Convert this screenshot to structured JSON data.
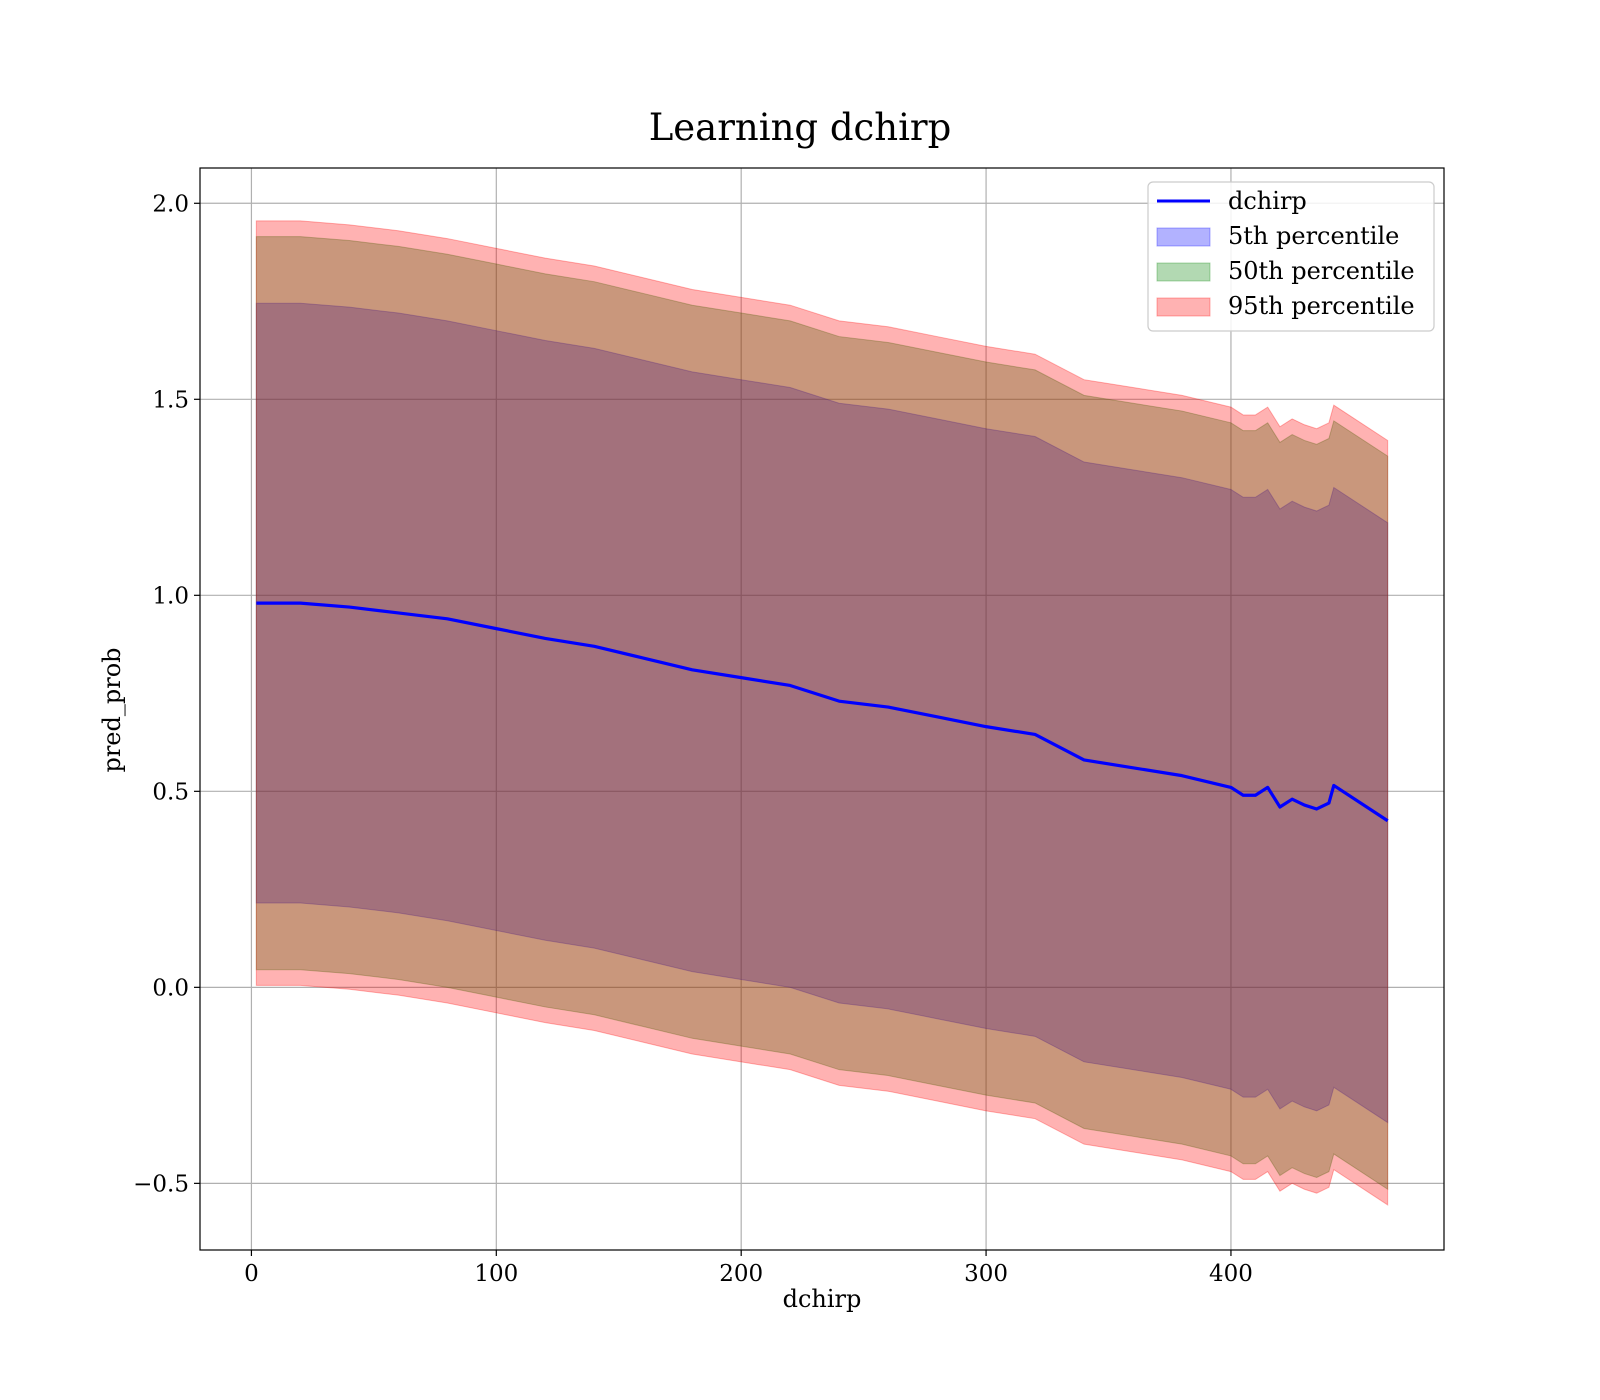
{
  "chart_data": {
    "type": "area",
    "title": "Learning dchirp",
    "xlabel": "dchirp",
    "ylabel": "pred_prob",
    "xlim": [
      -21,
      487
    ],
    "ylim": [
      -0.67,
      2.09
    ],
    "xticks": [
      0,
      100,
      200,
      300,
      400
    ],
    "xtick_labels": [
      "0",
      "100",
      "200",
      "300",
      "400"
    ],
    "yticks": [
      -0.5,
      0.0,
      0.5,
      1.0,
      1.5,
      2.0
    ],
    "ytick_labels": [
      "−0.5",
      "0.0",
      "0.5",
      "1.0",
      "1.5",
      "2.0"
    ],
    "grid": true,
    "legend_position": "top-right",
    "x": [
      2,
      20,
      40,
      60,
      80,
      100,
      120,
      140,
      160,
      180,
      200,
      220,
      240,
      260,
      280,
      300,
      320,
      340,
      360,
      380,
      400,
      405,
      410,
      415,
      420,
      425,
      430,
      435,
      440,
      442,
      464
    ],
    "line": {
      "name": "dchirp",
      "color": "#0000ff",
      "values": [
        0.98,
        0.98,
        0.97,
        0.955,
        0.94,
        0.915,
        0.89,
        0.87,
        0.84,
        0.81,
        0.79,
        0.77,
        0.73,
        0.715,
        0.69,
        0.665,
        0.645,
        0.58,
        0.56,
        0.54,
        0.51,
        0.49,
        0.49,
        0.51,
        0.46,
        0.48,
        0.465,
        0.455,
        0.47,
        0.515,
        0.425
      ]
    },
    "bands": [
      {
        "name": "5th percentile",
        "color": "#0000ff",
        "lower": [
          0.215,
          0.215,
          0.205,
          0.19,
          0.17,
          0.145,
          0.12,
          0.1,
          0.07,
          0.04,
          0.02,
          0.0,
          -0.04,
          -0.055,
          -0.08,
          -0.105,
          -0.125,
          -0.19,
          -0.21,
          -0.23,
          -0.26,
          -0.28,
          -0.28,
          -0.26,
          -0.31,
          -0.29,
          -0.305,
          -0.315,
          -0.3,
          -0.255,
          -0.345
        ],
        "upper": [
          1.745,
          1.745,
          1.735,
          1.72,
          1.7,
          1.675,
          1.65,
          1.63,
          1.6,
          1.57,
          1.55,
          1.53,
          1.49,
          1.475,
          1.45,
          1.425,
          1.405,
          1.34,
          1.32,
          1.3,
          1.27,
          1.25,
          1.25,
          1.27,
          1.22,
          1.24,
          1.225,
          1.215,
          1.23,
          1.275,
          1.185
        ]
      },
      {
        "name": "50th percentile",
        "color": "#008000",
        "lower": [
          0.045,
          0.045,
          0.035,
          0.02,
          0.0,
          -0.025,
          -0.05,
          -0.07,
          -0.1,
          -0.13,
          -0.15,
          -0.17,
          -0.21,
          -0.225,
          -0.25,
          -0.275,
          -0.295,
          -0.36,
          -0.38,
          -0.4,
          -0.43,
          -0.45,
          -0.45,
          -0.43,
          -0.48,
          -0.46,
          -0.475,
          -0.485,
          -0.47,
          -0.425,
          -0.515
        ],
        "upper": [
          1.915,
          1.915,
          1.905,
          1.89,
          1.87,
          1.845,
          1.82,
          1.8,
          1.77,
          1.74,
          1.72,
          1.7,
          1.66,
          1.645,
          1.62,
          1.595,
          1.575,
          1.51,
          1.49,
          1.47,
          1.44,
          1.42,
          1.42,
          1.44,
          1.39,
          1.41,
          1.395,
          1.385,
          1.4,
          1.445,
          1.355
        ]
      },
      {
        "name": "95th percentile",
        "color": "#ff0000",
        "lower": [
          0.005,
          0.005,
          -0.005,
          -0.02,
          -0.04,
          -0.065,
          -0.09,
          -0.11,
          -0.14,
          -0.17,
          -0.19,
          -0.21,
          -0.25,
          -0.265,
          -0.29,
          -0.315,
          -0.335,
          -0.4,
          -0.42,
          -0.44,
          -0.47,
          -0.49,
          -0.49,
          -0.47,
          -0.52,
          -0.5,
          -0.515,
          -0.525,
          -0.51,
          -0.465,
          -0.555
        ],
        "upper": [
          1.955,
          1.955,
          1.945,
          1.93,
          1.91,
          1.885,
          1.86,
          1.84,
          1.81,
          1.78,
          1.76,
          1.74,
          1.7,
          1.685,
          1.66,
          1.635,
          1.615,
          1.55,
          1.53,
          1.51,
          1.48,
          1.46,
          1.46,
          1.48,
          1.43,
          1.45,
          1.435,
          1.425,
          1.44,
          1.485,
          1.395
        ]
      }
    ],
    "legend": [
      "dchirp",
      "5th percentile",
      "50th percentile",
      "95th percentile"
    ]
  }
}
